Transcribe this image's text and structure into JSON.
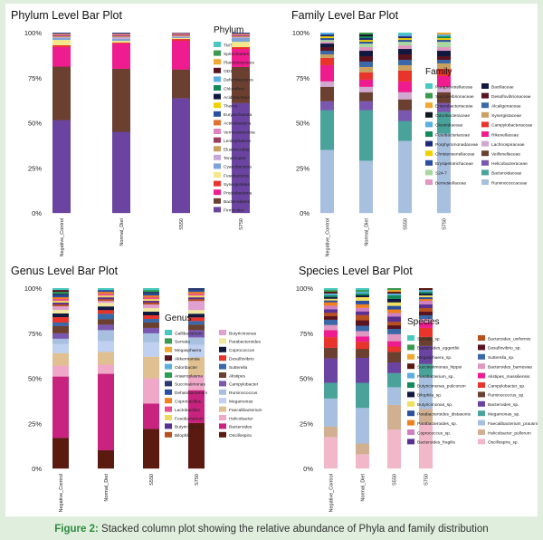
{
  "caption": {
    "label": "Figure 2:",
    "text": " Stacked column plot showing the relative abundance of Phyla and family distribution"
  },
  "chart_data": [
    {
      "type": "bar",
      "stacked": true,
      "title": "Phylum Level Bar Plot",
      "legend_title": "Phylum",
      "legend_columns": 1,
      "legend_position": "right",
      "ylim": [
        0,
        100
      ],
      "yticks": [
        "0%",
        "25%",
        "50%",
        "75%",
        "100%"
      ],
      "categories": [
        "Negative_Control",
        "Normal_Diet",
        "S550",
        "S750"
      ],
      "series": [
        {
          "name": "Firmicutes",
          "color": "#6a44a0",
          "values": [
            52,
            45,
            64,
            61
          ]
        },
        {
          "name": "Bacteroidetes",
          "color": "#6b4030",
          "values": [
            30,
            35,
            16,
            20
          ]
        },
        {
          "name": "Proteobacteria",
          "color": "#ee1c8e",
          "values": [
            11,
            14,
            16,
            10
          ]
        },
        {
          "name": "Synergistetes",
          "color": "#e8342a",
          "values": [
            1,
            0.5,
            1,
            1
          ]
        },
        {
          "name": "Fusobacteria",
          "color": "#f4e88a",
          "values": [
            3,
            1,
            0.5,
            3
          ]
        },
        {
          "name": "Cyanobacteria",
          "color": "#7da3d8",
          "values": [
            1,
            1,
            0.5,
            2
          ]
        },
        {
          "name": "Tenericutes",
          "color": "#c8a8d8",
          "values": [
            0.5,
            1,
            0.5,
            0.5
          ]
        },
        {
          "name": "Elusimicrobia",
          "color": "#c9a060",
          "values": [
            0.5,
            0.5,
            0.5,
            0.5
          ]
        },
        {
          "name": "Lentisphaerae",
          "color": "#9e3c5e",
          "values": [
            0.5,
            0.5,
            0.5,
            0.5
          ]
        },
        {
          "name": "Verrucomicrobia",
          "color": "#e084c0",
          "values": [
            0.5,
            0.5,
            0.5,
            0.5
          ]
        },
        {
          "name": "Actinobacteria",
          "color": "#e07030",
          "values": [
            0.5,
            0.5,
            0.3,
            0.5
          ]
        },
        {
          "name": "Euryarchaeota",
          "color": "#2a4ea0",
          "values": [
            0.5,
            0.5,
            0.2,
            0.5
          ]
        },
        {
          "name": "Thermi",
          "color": "#f0d000",
          "values": [
            0,
            0,
            0,
            0
          ]
        },
        {
          "name": "Acidobacteria",
          "color": "#101840",
          "values": [
            0,
            0,
            0,
            0
          ]
        },
        {
          "name": "Chloroflexi",
          "color": "#138a5a",
          "values": [
            0,
            0,
            0,
            0
          ]
        },
        {
          "name": "Deferribacteres",
          "color": "#58b0e0",
          "values": [
            0,
            0,
            0,
            0
          ]
        },
        {
          "name": "OD1",
          "color": "#5a1420",
          "values": [
            0,
            0,
            0,
            0
          ]
        },
        {
          "name": "Planctomycetes",
          "color": "#f0a830",
          "values": [
            0,
            0,
            0,
            0
          ]
        },
        {
          "name": "Spirochaetes",
          "color": "#3a9a50",
          "values": [
            0,
            0,
            0,
            0
          ]
        },
        {
          "name": "TM7",
          "color": "#48c8c0",
          "values": [
            0,
            0,
            0,
            0
          ]
        }
      ]
    },
    {
      "type": "bar",
      "stacked": true,
      "title": "Family Level Bar Plot",
      "legend_title": "Family",
      "legend_columns": 2,
      "legend_position": "right",
      "ylim": [
        0,
        100
      ],
      "yticks": [
        "0%",
        "25%",
        "50%",
        "75%",
        "100%"
      ],
      "categories": [
        "Negative_Control",
        "Normal_Diet",
        "S550",
        "S750"
      ],
      "series": [
        {
          "name": "Ruminococcaceae",
          "color": "#a8c0e0",
          "values": [
            35,
            29,
            40,
            44
          ]
        },
        {
          "name": "Bacteroidaceae",
          "color": "#4aa39a",
          "values": [
            22,
            28,
            11,
            12
          ]
        },
        {
          "name": "Helicobacteraceae",
          "color": "#7a58b0",
          "values": [
            5,
            5,
            6,
            5
          ]
        },
        {
          "name": "Veillonellaceae",
          "color": "#6b4030",
          "values": [
            8,
            5,
            6,
            6
          ]
        },
        {
          "name": "Lachnospiraceae",
          "color": "#d0a8d0",
          "values": [
            3,
            3,
            4,
            3
          ]
        },
        {
          "name": "Rikenellaceae",
          "color": "#ee1c8e",
          "values": [
            9,
            4,
            6,
            6
          ]
        },
        {
          "name": "Campylobacteraceae",
          "color": "#e8342a",
          "values": [
            4,
            4,
            6,
            4
          ]
        },
        {
          "name": "Synergistaceae",
          "color": "#c9a060",
          "values": [
            2,
            3,
            3,
            3
          ]
        },
        {
          "name": "Alcaligenaceae",
          "color": "#3a68a8",
          "values": [
            2,
            3,
            3,
            2
          ]
        },
        {
          "name": "Desulfovibrionaceae",
          "color": "#5a1420",
          "values": [
            2,
            3,
            3,
            2
          ]
        },
        {
          "name": "Bacillaceae",
          "color": "#101840",
          "values": [
            2,
            3,
            3,
            3
          ]
        },
        {
          "name": "Bernesiellaceae",
          "color": "#e098c0",
          "values": [
            1,
            2,
            2,
            2
          ]
        },
        {
          "name": "S24-7",
          "color": "#a8d8a0",
          "values": [
            1,
            2,
            2,
            3
          ]
        },
        {
          "name": "Erysipelotrichaceae",
          "color": "#2a4ea0",
          "values": [
            1,
            1,
            1,
            1
          ]
        },
        {
          "name": "Christensenellaceae",
          "color": "#f0d000",
          "values": [
            1,
            1,
            1,
            1
          ]
        },
        {
          "name": "Porphyromonadaceae",
          "color": "#1e2a78",
          "values": [
            1,
            1,
            1,
            0
          ]
        },
        {
          "name": "Fusobacteriaceae",
          "color": "#138a5a",
          "values": [
            0,
            1,
            0,
            1
          ]
        },
        {
          "name": "Clostridiaceae",
          "color": "#58b0e0",
          "values": [
            1,
            0,
            1,
            1
          ]
        },
        {
          "name": "Odoribacteraceae",
          "color": "#101820",
          "values": [
            0,
            1,
            0,
            0
          ]
        },
        {
          "name": "Enterobacteriaceae",
          "color": "#f0a830",
          "values": [
            0,
            0,
            0,
            1
          ]
        },
        {
          "name": "Succinivibrionaceae",
          "color": "#3a9a50",
          "values": [
            0,
            1,
            0,
            0
          ]
        },
        {
          "name": "Paraprevotellaceae",
          "color": "#48c8c0",
          "values": [
            0,
            0,
            1,
            0
          ]
        }
      ]
    },
    {
      "type": "bar",
      "stacked": true,
      "title": "Genus Level Bar Plot",
      "legend_title": "Genus",
      "legend_columns": 2,
      "legend_position": "right",
      "ylim": [
        0,
        100
      ],
      "yticks": [
        "0%",
        "25%",
        "50%",
        "75%",
        "100%"
      ],
      "categories": [
        "Negative_Control",
        "Normal_Diet",
        "S550",
        "S750"
      ],
      "series": [
        {
          "name": "Oscillospira",
          "color": "#5a1a10",
          "values": [
            17,
            10,
            22,
            25
          ]
        },
        {
          "name": "Bacteroides",
          "color": "#c8237e",
          "values": [
            34,
            42,
            14,
            18
          ]
        },
        {
          "name": "Helicobacter",
          "color": "#f0a8c8",
          "values": [
            6,
            5,
            14,
            8
          ]
        },
        {
          "name": "Faecalibacterium",
          "color": "#e0c090",
          "values": [
            7,
            7,
            12,
            10
          ]
        },
        {
          "name": "Megamonas",
          "color": "#c0d0f0",
          "values": [
            5,
            6,
            8,
            7
          ]
        },
        {
          "name": "Ruminococcus",
          "color": "#a8c0e0",
          "values": [
            3,
            6,
            5,
            4
          ]
        },
        {
          "name": "Campylobacter",
          "color": "#7a58b0",
          "values": [
            3,
            3,
            3,
            4
          ]
        },
        {
          "name": "Alistipes",
          "color": "#6b4030",
          "values": [
            4,
            3,
            3,
            3
          ]
        },
        {
          "name": "Sutterella",
          "color": "#3a68a8",
          "values": [
            2,
            3,
            2,
            2
          ]
        },
        {
          "name": "Desulfovibrio",
          "color": "#e8342a",
          "values": [
            3,
            2,
            2,
            2
          ]
        },
        {
          "name": "Coprococcus",
          "color": "#101840",
          "values": [
            2,
            2,
            2,
            2
          ]
        },
        {
          "name": "Parabacteroides",
          "color": "#f0e8a0",
          "values": [
            2,
            2,
            2,
            2
          ]
        },
        {
          "name": "Butyricimonas",
          "color": "#e0a0d0",
          "values": [
            2,
            1,
            2,
            5
          ]
        },
        {
          "name": "Bilophila",
          "color": "#b85020",
          "values": [
            1,
            1,
            1,
            1
          ]
        },
        {
          "name": "Butyricicoccus",
          "color": "#5a3090",
          "values": [
            1,
            1,
            1,
            1
          ]
        },
        {
          "name": "Fusobacterium",
          "color": "#f0d860",
          "values": [
            1,
            1,
            1,
            1
          ]
        },
        {
          "name": "Lactobacillus",
          "color": "#e85090",
          "values": [
            1,
            1,
            1,
            1
          ]
        },
        {
          "name": "Coprobacillus",
          "color": "#f08020",
          "values": [
            1,
            1,
            1,
            1
          ]
        },
        {
          "name": "Dehalobacterium",
          "color": "#2a4ea0",
          "values": [
            1,
            1,
            1,
            1
          ]
        },
        {
          "name": "Succinatimonas",
          "color": "#2a3a70",
          "values": [
            1,
            0,
            1,
            1
          ]
        },
        {
          "name": "Anaeroplasma",
          "color": "#28a050",
          "values": [
            1,
            0,
            1,
            0
          ]
        },
        {
          "name": "Odoribacter",
          "color": "#58b0e0",
          "values": [
            0,
            0,
            0,
            0
          ]
        },
        {
          "name": "Akkermansia",
          "color": "#5a1420",
          "values": [
            1,
            0,
            0,
            0
          ]
        },
        {
          "name": "Megasphaera",
          "color": "#f0a830",
          "values": [
            0,
            0,
            0,
            0
          ]
        },
        {
          "name": "Serratia",
          "color": "#3a9a50",
          "values": [
            0,
            0,
            0,
            0
          ]
        },
        {
          "name": "Gallibacterium",
          "color": "#48c8c0",
          "values": [
            1,
            1,
            1,
            0
          ]
        }
      ]
    },
    {
      "type": "bar",
      "stacked": true,
      "title": "Species Level Bar Plot",
      "legend_title": "Species",
      "legend_columns": 2,
      "legend_position": "right",
      "ylim": [
        0,
        100
      ],
      "yticks": [
        "0%",
        "25%",
        "50%",
        "75%",
        "100%"
      ],
      "categories": [
        "Negative_Control",
        "Normal_Diet",
        "S550",
        "S750"
      ],
      "series": [
        {
          "name": "Oscillospira_sp.",
          "color": "#f0b8c8",
          "values": [
            18,
            8,
            22,
            25
          ]
        },
        {
          "name": "Helicobacter_pullorum",
          "color": "#d0b090",
          "values": [
            6,
            6,
            14,
            8
          ]
        },
        {
          "name": "Faecalibacterium_prausnitzii",
          "color": "#a8c0e0",
          "values": [
            16,
            20,
            10,
            18
          ]
        },
        {
          "name": "Megamonas_sp.",
          "color": "#4aa39a",
          "values": [
            9,
            14,
            8,
            7
          ]
        },
        {
          "name": "Bacteroides_sp.",
          "color": "#6a44a0",
          "values": [
            14,
            14,
            6,
            10
          ]
        },
        {
          "name": "Ruminococcus_sp.",
          "color": "#6b4030",
          "values": [
            6,
            5,
            6,
            5
          ]
        },
        {
          "name": "Campylobacter_sp.",
          "color": "#e8342a",
          "values": [
            6,
            4,
            3,
            5
          ]
        },
        {
          "name": "Alistipes_massiliensis",
          "color": "#ee1c8e",
          "values": [
            4,
            3,
            3,
            3
          ]
        },
        {
          "name": "Bacteroides_barnesiae",
          "color": "#e098c0",
          "values": [
            3,
            3,
            4,
            2
          ]
        },
        {
          "name": "Sutterella_sp.",
          "color": "#3a68a8",
          "values": [
            3,
            3,
            3,
            2
          ]
        },
        {
          "name": "Desulfovibrio_sp.",
          "color": "#5a1420",
          "values": [
            2,
            3,
            2,
            2
          ]
        },
        {
          "name": "Bacteroides_uniformis",
          "color": "#b85020",
          "values": [
            2,
            3,
            2,
            2
          ]
        },
        {
          "name": "Bacteroides_fragilis",
          "color": "#5a3090",
          "values": [
            2,
            2,
            3,
            2
          ]
        },
        {
          "name": "Coprococcus_sp.",
          "color": "#d080c0",
          "values": [
            2,
            2,
            2,
            2
          ]
        },
        {
          "name": "Parabacteroides_sp.",
          "color": "#f08020",
          "values": [
            2,
            2,
            2,
            1
          ]
        },
        {
          "name": "Parabacteroides_distasonis",
          "color": "#2a4ea0",
          "values": [
            1,
            2,
            2,
            1
          ]
        },
        {
          "name": "Butyricimonas_sp.",
          "color": "#f0e060",
          "values": [
            1,
            2,
            2,
            1
          ]
        },
        {
          "name": "Bilophila_sp.",
          "color": "#101840",
          "values": [
            1,
            1,
            2,
            1
          ]
        },
        {
          "name": "Butyricimonas_pulicorum",
          "color": "#138a5a",
          "values": [
            1,
            1,
            2,
            1
          ]
        },
        {
          "name": "Fusobacterium_sp.",
          "color": "#58b0e0",
          "values": [
            1,
            1,
            1,
            1
          ]
        },
        {
          "name": "Succinatimonas_hippei",
          "color": "#5a1a10",
          "values": [
            1,
            0,
            1,
            1
          ]
        },
        {
          "name": "Megasphaera_sp.",
          "color": "#f0a830",
          "values": [
            0,
            0,
            1,
            0
          ]
        },
        {
          "name": "Bacteroides_eggerthii",
          "color": "#3a9a50",
          "values": [
            1,
            1,
            1,
            0
          ]
        },
        {
          "name": "Serratia_sp.",
          "color": "#48c8c0",
          "values": [
            1,
            1,
            0,
            0
          ]
        }
      ]
    }
  ]
}
